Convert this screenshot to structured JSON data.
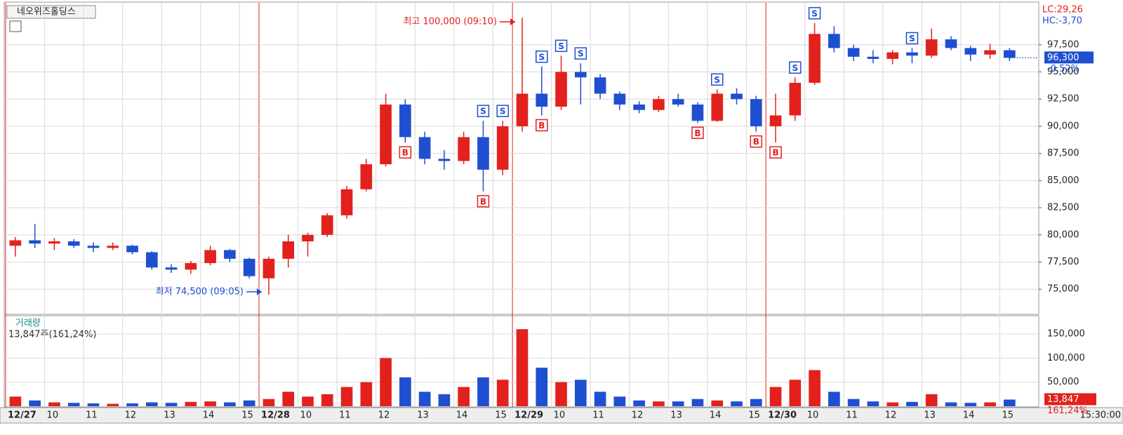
{
  "header": {
    "title": "네오위즈홀딩스",
    "lc": "LC:29,26",
    "hc": "HC:-3,70",
    "time": "15:30:00"
  },
  "chart_data": [
    {
      "type": "candlestick",
      "name": "price",
      "color_up": "#e3211c",
      "color_down": "#1f4fd1",
      "x": [
        "12/27",
        null,
        "10",
        null,
        "11",
        null,
        "12",
        null,
        "13",
        null,
        "14",
        null,
        "15",
        "12/28",
        null,
        "10",
        null,
        "11",
        null,
        "12",
        null,
        "13",
        null,
        "14",
        null,
        "15",
        "12/29",
        null,
        "10",
        null,
        "11",
        null,
        "12",
        null,
        "13",
        null,
        "14",
        null,
        "15",
        "12/30",
        null,
        "10",
        null,
        "11",
        null,
        "12",
        null,
        "13",
        null,
        "14",
        null,
        "15"
      ],
      "ohlc": [
        [
          79000,
          79800,
          78000,
          79500
        ],
        [
          79500,
          81000,
          78800,
          79200
        ],
        [
          79200,
          79700,
          78600,
          79400
        ],
        [
          79400,
          79600,
          78800,
          79000
        ],
        [
          79000,
          79300,
          78400,
          78800
        ],
        [
          78800,
          79300,
          78600,
          79000
        ],
        [
          79000,
          79100,
          78200,
          78400
        ],
        [
          78400,
          78500,
          76800,
          77000
        ],
        [
          77000,
          77300,
          76500,
          76800
        ],
        [
          76800,
          77600,
          76400,
          77400
        ],
        [
          77400,
          79000,
          77200,
          78600
        ],
        [
          78600,
          78700,
          77500,
          77800
        ],
        [
          77800,
          77900,
          76000,
          76200
        ],
        [
          76000,
          78000,
          74500,
          77800
        ],
        [
          77800,
          80000,
          77000,
          79400
        ],
        [
          79400,
          80200,
          78000,
          80000
        ],
        [
          80000,
          82000,
          79800,
          81800
        ],
        [
          81800,
          84500,
          81500,
          84200
        ],
        [
          84200,
          87000,
          84000,
          86500
        ],
        [
          86500,
          93000,
          86300,
          92000
        ],
        [
          92000,
          92500,
          88500,
          89000
        ],
        [
          89000,
          89500,
          86500,
          87000
        ],
        [
          87000,
          87800,
          86000,
          86800
        ],
        [
          86800,
          89500,
          86500,
          89000
        ],
        [
          89000,
          90500,
          84000,
          86000
        ],
        [
          86000,
          90500,
          85500,
          90000
        ],
        [
          90000,
          100000,
          89500,
          93000
        ],
        [
          93000,
          95500,
          91000,
          91800
        ],
        [
          91800,
          96500,
          91500,
          95000
        ],
        [
          95000,
          95800,
          92000,
          94500
        ],
        [
          94500,
          94800,
          92500,
          93000
        ],
        [
          93000,
          93200,
          91500,
          92000
        ],
        [
          92000,
          92300,
          91200,
          91500
        ],
        [
          91500,
          92800,
          91300,
          92500
        ],
        [
          92500,
          93000,
          91800,
          92000
        ],
        [
          92000,
          92200,
          90300,
          90500
        ],
        [
          90500,
          93400,
          90400,
          93000
        ],
        [
          93000,
          93500,
          92000,
          92500
        ],
        [
          92500,
          92800,
          89500,
          90000
        ],
        [
          90000,
          93000,
          88500,
          91000
        ],
        [
          91000,
          94500,
          90500,
          94000
        ],
        [
          94000,
          99500,
          93800,
          98500
        ],
        [
          98500,
          99200,
          96800,
          97200
        ],
        [
          97200,
          97500,
          96000,
          96400
        ],
        [
          96400,
          97000,
          95800,
          96200
        ],
        [
          96200,
          97000,
          95700,
          96800
        ],
        [
          96800,
          97200,
          95800,
          96500
        ],
        [
          96500,
          99000,
          96300,
          98000
        ],
        [
          98000,
          98300,
          97000,
          97200
        ],
        [
          97200,
          97400,
          96000,
          96600
        ],
        [
          96600,
          97600,
          96200,
          97000
        ],
        [
          97000,
          97200,
          96000,
          96300
        ]
      ],
      "ylim": [
        72750,
        101300
      ],
      "yticks": [
        {
          "value": 75000,
          "label": "75,000"
        },
        {
          "value": 77500,
          "label": "77,500"
        },
        {
          "value": 80000,
          "label": "80,000"
        },
        {
          "value": 82500,
          "label": "82,500"
        },
        {
          "value": 85000,
          "label": "85,000"
        },
        {
          "value": 87500,
          "label": "87,500"
        },
        {
          "value": 90000,
          "label": "90,000"
        },
        {
          "value": 92500,
          "label": "92,500"
        },
        {
          "value": 95000,
          "label": "95,000"
        },
        {
          "value": 97500,
          "label": "97,500"
        }
      ],
      "grid": true,
      "annotations": [
        {
          "index": 26,
          "at": "high",
          "text": "최고 100,000 (09:10)",
          "color": "#e3211c"
        },
        {
          "index": 13,
          "at": "low",
          "text": "최저 74,500 (09:05)",
          "color": "#1f4fd1"
        }
      ],
      "signals": [
        {
          "index": 20,
          "label": "B"
        },
        {
          "index": 24,
          "label": "B"
        },
        {
          "index": 27,
          "label": "B"
        },
        {
          "index": 35,
          "label": "B"
        },
        {
          "index": 38,
          "label": "B"
        },
        {
          "index": 39,
          "label": "B"
        },
        {
          "index": 24,
          "label": "S"
        },
        {
          "index": 25,
          "label": "S"
        },
        {
          "index": 27,
          "label": "S"
        },
        {
          "index": 28,
          "label": "S"
        },
        {
          "index": 29,
          "label": "S"
        },
        {
          "index": 36,
          "label": "S"
        },
        {
          "index": 40,
          "label": "S"
        },
        {
          "index": 41,
          "label": "S"
        },
        {
          "index": 46,
          "label": "S"
        }
      ],
      "last": {
        "value": 96300,
        "label": "96,300"
      },
      "change": "-0,52%"
    },
    {
      "type": "volume",
      "title": "거래량",
      "subtitle": "13,847주(161,24%)",
      "values": [
        20000,
        12000,
        8000,
        7000,
        6000,
        5000,
        6000,
        8000,
        7000,
        9000,
        10000,
        8000,
        12000,
        15000,
        30000,
        20000,
        25000,
        40000,
        50000,
        100000,
        60000,
        30000,
        25000,
        40000,
        60000,
        55000,
        160000,
        80000,
        50000,
        55000,
        30000,
        20000,
        12000,
        10000,
        10000,
        15000,
        12000,
        10000,
        15000,
        40000,
        55000,
        75000,
        30000,
        15000,
        10000,
        8000,
        9000,
        25000,
        8000,
        7000,
        8000,
        13847
      ],
      "ylim": [
        0,
        185000
      ],
      "yticks": [
        {
          "value": 50000,
          "label": "50,000"
        },
        {
          "value": 100000,
          "label": "100,000"
        },
        {
          "value": 150000,
          "label": "150,000"
        }
      ],
      "last": {
        "value": 13847,
        "label": "13,847"
      },
      "change": "161,24%"
    }
  ]
}
